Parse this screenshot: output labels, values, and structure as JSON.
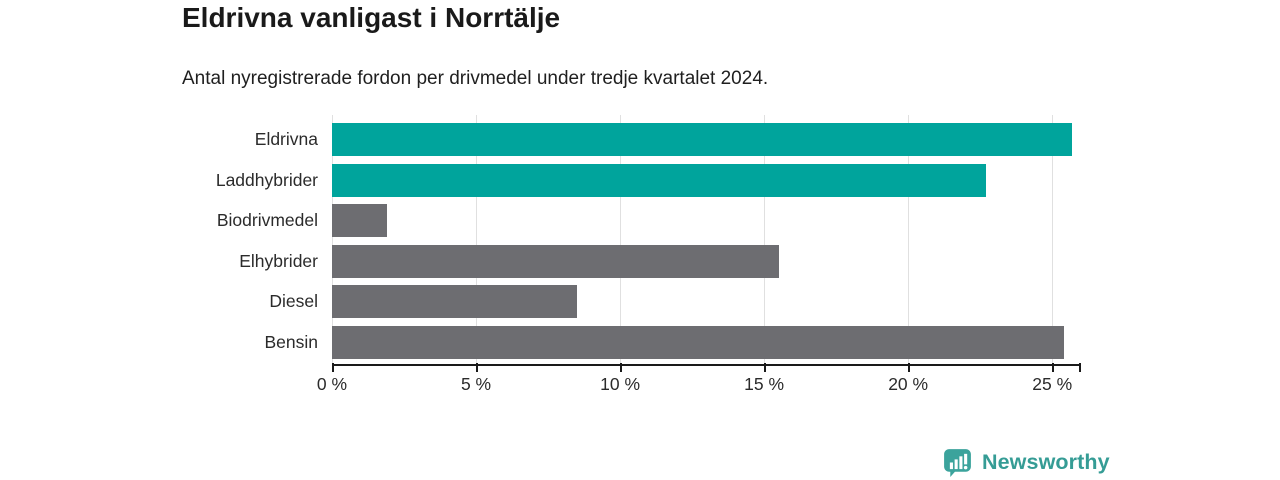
{
  "header": {
    "title": "Eldrivna vanligast i Norrtälje",
    "subtitle": "Antal nyregistrerade fordon per drivmedel under tredje kvartalet 2024."
  },
  "chart_data": {
    "type": "bar",
    "orientation": "horizontal",
    "title": "Eldrivna vanligast i Norrtälje",
    "subtitle": "Antal nyregistrerade fordon per drivmedel under tredje kvartalet 2024.",
    "categories": [
      "Eldrivna",
      "Laddhybrider",
      "Biodrivmedel",
      "Elhybrider",
      "Diesel",
      "Bensin"
    ],
    "values": [
      25.7,
      22.7,
      1.9,
      15.5,
      8.5,
      25.4
    ],
    "unit": "%",
    "bar_colors": [
      "#00a49c",
      "#00a49c",
      "#6d6d71",
      "#6d6d71",
      "#6d6d71",
      "#6d6d71"
    ],
    "highlight_color": "#00a49c",
    "base_color": "#6d6d71",
    "xlim": [
      0,
      26
    ],
    "xticks": [
      0,
      5,
      10,
      15,
      20,
      25
    ],
    "xtick_labels": [
      "0 %",
      "5 %",
      "10 %",
      "15 %",
      "20 %",
      "25 %"
    ],
    "grid": "vertical",
    "gridline_color": "#e0e0e0",
    "axis_color": "#1a1a1a",
    "legend": "none"
  },
  "footer": {
    "brand": "Newsworthy",
    "brand_color": "#359c95",
    "icon_color": "#3ba39c",
    "icon": "bar-chart-speech-bubble-icon"
  }
}
